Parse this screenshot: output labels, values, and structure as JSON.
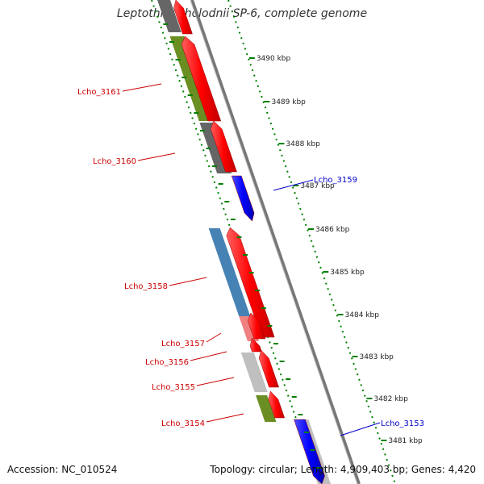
{
  "title": "Leptothrix cholodnii SP-6, complete genome",
  "footer": {
    "accession": "Accession: NC_010524",
    "summary": "Topology: circular; Length: 4,909,403 bp; Genes: 4,420"
  },
  "colors": {
    "red_gene": "#ff0000",
    "blue_gene": "#0000ff",
    "olive": "#6b8e23",
    "steelblue": "#4682b4",
    "salmon": "#f08080",
    "gray": "#666666",
    "lightgray": "#bfbfbf",
    "tick_green": "#008000",
    "label_red": "#cc0000",
    "label_blue": "#0000cc"
  },
  "scale_ticks": [
    {
      "label": "3490 kbp",
      "kbp": 3490
    },
    {
      "label": "3489 kbp",
      "kbp": 3489
    },
    {
      "label": "3488 kbp",
      "kbp": 3488
    },
    {
      "label": "3487 kbp",
      "kbp": 3487
    },
    {
      "label": "3486 kbp",
      "kbp": 3486
    },
    {
      "label": "3485 kbp",
      "kbp": 3485
    },
    {
      "label": "3484 kbp",
      "kbp": 3484
    },
    {
      "label": "3483 kbp",
      "kbp": 3483
    },
    {
      "label": "3482 kbp",
      "kbp": 3482
    },
    {
      "label": "3481 kbp",
      "kbp": 3481
    }
  ],
  "gene_labels": [
    {
      "name": "Lcho_3161",
      "color": "label_red",
      "side": "left"
    },
    {
      "name": "Lcho_3160",
      "color": "label_red",
      "side": "left"
    },
    {
      "name": "Lcho_3159",
      "color": "label_blue",
      "side": "right"
    },
    {
      "name": "Lcho_3158",
      "color": "label_red",
      "side": "left"
    },
    {
      "name": "Lcho_3157",
      "color": "label_red",
      "side": "left"
    },
    {
      "name": "Lcho_3156",
      "color": "label_red",
      "side": "left"
    },
    {
      "name": "Lcho_3155",
      "color": "label_red",
      "side": "left"
    },
    {
      "name": "Lcho_3154",
      "color": "label_red",
      "side": "left"
    },
    {
      "name": "Lcho_3153",
      "color": "label_blue",
      "side": "right"
    }
  ]
}
